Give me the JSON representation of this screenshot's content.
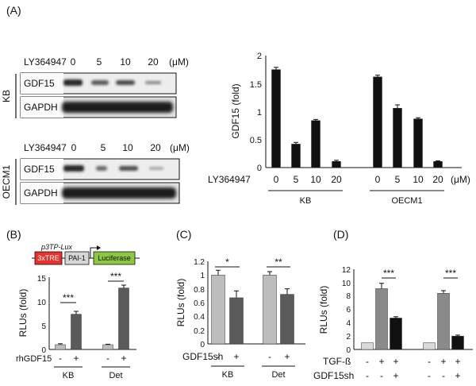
{
  "panel_labels": {
    "A": "(A)",
    "B": "(B)",
    "C": "(C)",
    "D": "(D)"
  },
  "colors": {
    "black": "#111111",
    "light": "#bdbdbd",
    "dark": "#5a5a5a",
    "mid": "#8a8a8a",
    "very_light": "#d9d9d9",
    "construct_red": "#e8322d",
    "construct_green": "#8dc63f",
    "construct_gray": "#d6d6d6"
  },
  "blots": {
    "kb": {
      "treatment_label": "LY364947",
      "doses": [
        "0",
        "5",
        "10",
        "20"
      ],
      "unit": "(μM)",
      "side_label": "KB",
      "rows": [
        "GDF15",
        "GAPDH"
      ]
    },
    "oecm1": {
      "treatment_label": "LY364947",
      "doses": [
        "0",
        "5",
        "10",
        "20"
      ],
      "unit": "(μM)",
      "side_label": "OECM1",
      "rows": [
        "GDF15",
        "GAPDH"
      ]
    }
  },
  "construct": {
    "promoter_name": "p3TP-Lux",
    "elements": [
      "3xTRE",
      "PAI-1",
      "Luciferase"
    ]
  },
  "chart_data": [
    {
      "id": "A",
      "type": "bar",
      "ylabel": "GDF15 (fold)",
      "ylim": [
        0,
        2
      ],
      "yticks": [
        "0",
        "0.5",
        "1",
        "1.5",
        "2"
      ],
      "treatment_label": "LY364947",
      "unit": "(μM)",
      "groups": [
        {
          "name": "KB",
          "categories": [
            "0",
            "5",
            "10",
            "20"
          ],
          "values": [
            1.75,
            0.42,
            0.84,
            0.11
          ],
          "errors": [
            0.04,
            0.03,
            0.02,
            0.02
          ]
        },
        {
          "name": "OECM1",
          "categories": [
            "0",
            "5",
            "10",
            "20"
          ],
          "values": [
            1.62,
            1.06,
            0.87,
            0.11
          ],
          "errors": [
            0.03,
            0.06,
            0.02,
            0.01
          ]
        }
      ],
      "grid": false
    },
    {
      "id": "B",
      "type": "bar",
      "ylabel": "RLUs (fold)",
      "ylim": [
        0,
        15
      ],
      "yticks": [
        "0",
        "5",
        "10",
        "15"
      ],
      "treatment_label": "rhGDF15",
      "groups": [
        {
          "name": "KB",
          "categories": [
            "-",
            "+"
          ],
          "values": [
            1.0,
            7.4
          ],
          "errors": [
            0.2,
            0.6
          ],
          "significance": "***"
        },
        {
          "name": "Det",
          "categories": [
            "-",
            "+"
          ],
          "values": [
            1.0,
            12.9
          ],
          "errors": [
            0.1,
            0.6
          ],
          "significance": "***"
        }
      ],
      "grid": false
    },
    {
      "id": "C",
      "type": "bar",
      "ylabel": "RLUs (fold)",
      "ylim": [
        0,
        1.2
      ],
      "yticks": [
        "0",
        "0.2",
        "0.4",
        "0.6",
        "0.8",
        "1",
        "1.2"
      ],
      "treatment_label": "GDF15sh",
      "groups": [
        {
          "name": "KB",
          "categories": [
            "-",
            "+"
          ],
          "values": [
            1.0,
            0.67
          ],
          "errors": [
            0.07,
            0.1
          ],
          "significance": "*"
        },
        {
          "name": "Det",
          "categories": [
            "-",
            "+"
          ],
          "values": [
            1.0,
            0.72
          ],
          "errors": [
            0.05,
            0.08
          ],
          "significance": "**"
        }
      ],
      "grid": false
    },
    {
      "id": "D",
      "type": "bar",
      "ylabel": "RLUs (fold)",
      "ylim": [
        0,
        12
      ],
      "yticks": [
        "0",
        "2",
        "4",
        "6",
        "8",
        "10",
        "12"
      ],
      "treatment_labels": [
        "TGF-ß",
        "GDF15sh"
      ],
      "groups": [
        {
          "values": [
            1.0,
            9.1,
            4.7
          ],
          "errors": [
            0.0,
            0.8,
            0.2
          ],
          "tgf": [
            "-",
            "+",
            "+"
          ],
          "sh": [
            "-",
            "-",
            "+"
          ],
          "significance": "***"
        },
        {
          "values": [
            1.0,
            8.4,
            2.0
          ],
          "errors": [
            0.0,
            0.4,
            0.15
          ],
          "tgf": [
            "-",
            "+",
            "+"
          ],
          "sh": [
            "-",
            "-",
            "+"
          ],
          "significance": "***"
        }
      ],
      "grid": false
    }
  ]
}
